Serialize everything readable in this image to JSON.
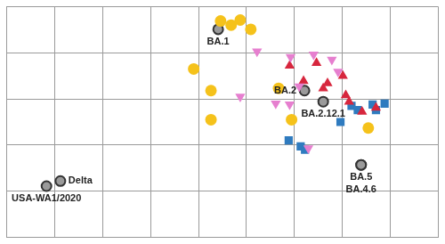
{
  "chart_data": {
    "type": "scatter",
    "xlim": [
      0,
      9
    ],
    "ylim": [
      0,
      5
    ],
    "xticks": [
      0,
      1,
      2,
      3,
      4,
      5,
      6,
      7,
      8,
      9
    ],
    "yticks": [
      0,
      1,
      2,
      3,
      4,
      5
    ],
    "grid": true,
    "tick_labels": false,
    "series": [
      {
        "color": "#f5c21b",
        "marker": "circle",
        "x": [
          4.46,
          4.87,
          4.68,
          5.09,
          3.9,
          4.26,
          4.26,
          5.67,
          5.94,
          7.54
        ],
        "y": [
          4.69,
          4.71,
          4.6,
          4.51,
          3.65,
          3.18,
          2.55,
          3.23,
          2.55,
          2.37
        ]
      },
      {
        "color": "#e67fcf",
        "marker": "triangle_down",
        "x": [
          5.22,
          5.92,
          6.4,
          6.78,
          6.91,
          4.87,
          5.61,
          6.1,
          5.9,
          6.29
        ],
        "y": [
          4.03,
          3.91,
          3.96,
          3.85,
          3.59,
          3.05,
          2.9,
          3.27,
          2.88,
          1.93
        ]
      },
      {
        "color": "#d7263d",
        "marker": "triangle",
        "x": [
          5.9,
          6.46,
          6.19,
          6.6,
          6.69,
          7.01,
          7.07,
          7.14,
          7.41,
          7.7
        ],
        "y": [
          3.72,
          3.78,
          3.39,
          3.23,
          3.34,
          3.5,
          3.08,
          2.94,
          2.72,
          2.81
        ]
      },
      {
        "color": "#2f7bbf",
        "marker": "square",
        "x": [
          5.88,
          6.13,
          6.22,
          6.96,
          7.19,
          7.32,
          7.63,
          7.88,
          7.7
        ],
        "y": [
          2.1,
          1.97,
          1.9,
          2.5,
          2.85,
          2.76,
          2.88,
          2.9,
          2.76
        ]
      },
      {
        "color": "#9a9a9a",
        "marker": "circle",
        "labels": [
          "BA.1",
          "BA.2",
          "BA.2.12.1",
          "BA.5",
          "BA.4.6",
          "Delta",
          "USA-WA1/2020"
        ],
        "x": [
          4.41,
          6.21,
          6.6,
          7.39,
          7.39,
          1.12,
          0.83
        ],
        "y": [
          4.51,
          3.18,
          2.94,
          1.57,
          1.57,
          1.22,
          1.11
        ]
      }
    ]
  }
}
